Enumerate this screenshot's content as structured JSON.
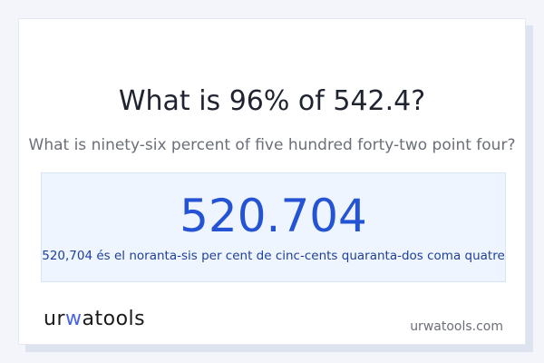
{
  "title": "What is 96% of 542.4?",
  "subtitle": "What is ninety-six percent of five hundred forty-two point four?",
  "answer": "520.704",
  "answer_words": "520,704 és el noranta-sis per cent de cinc-cents quaranta-dos coma quatre",
  "logo": {
    "text": "urwatools",
    "part1": "ur",
    "part2": "w",
    "part3": "atools",
    "accent": "#4a64e0"
  },
  "site": "urwatools.com",
  "colors": {
    "answer": "#2453d4",
    "answer_bg": "#eef5ff"
  }
}
